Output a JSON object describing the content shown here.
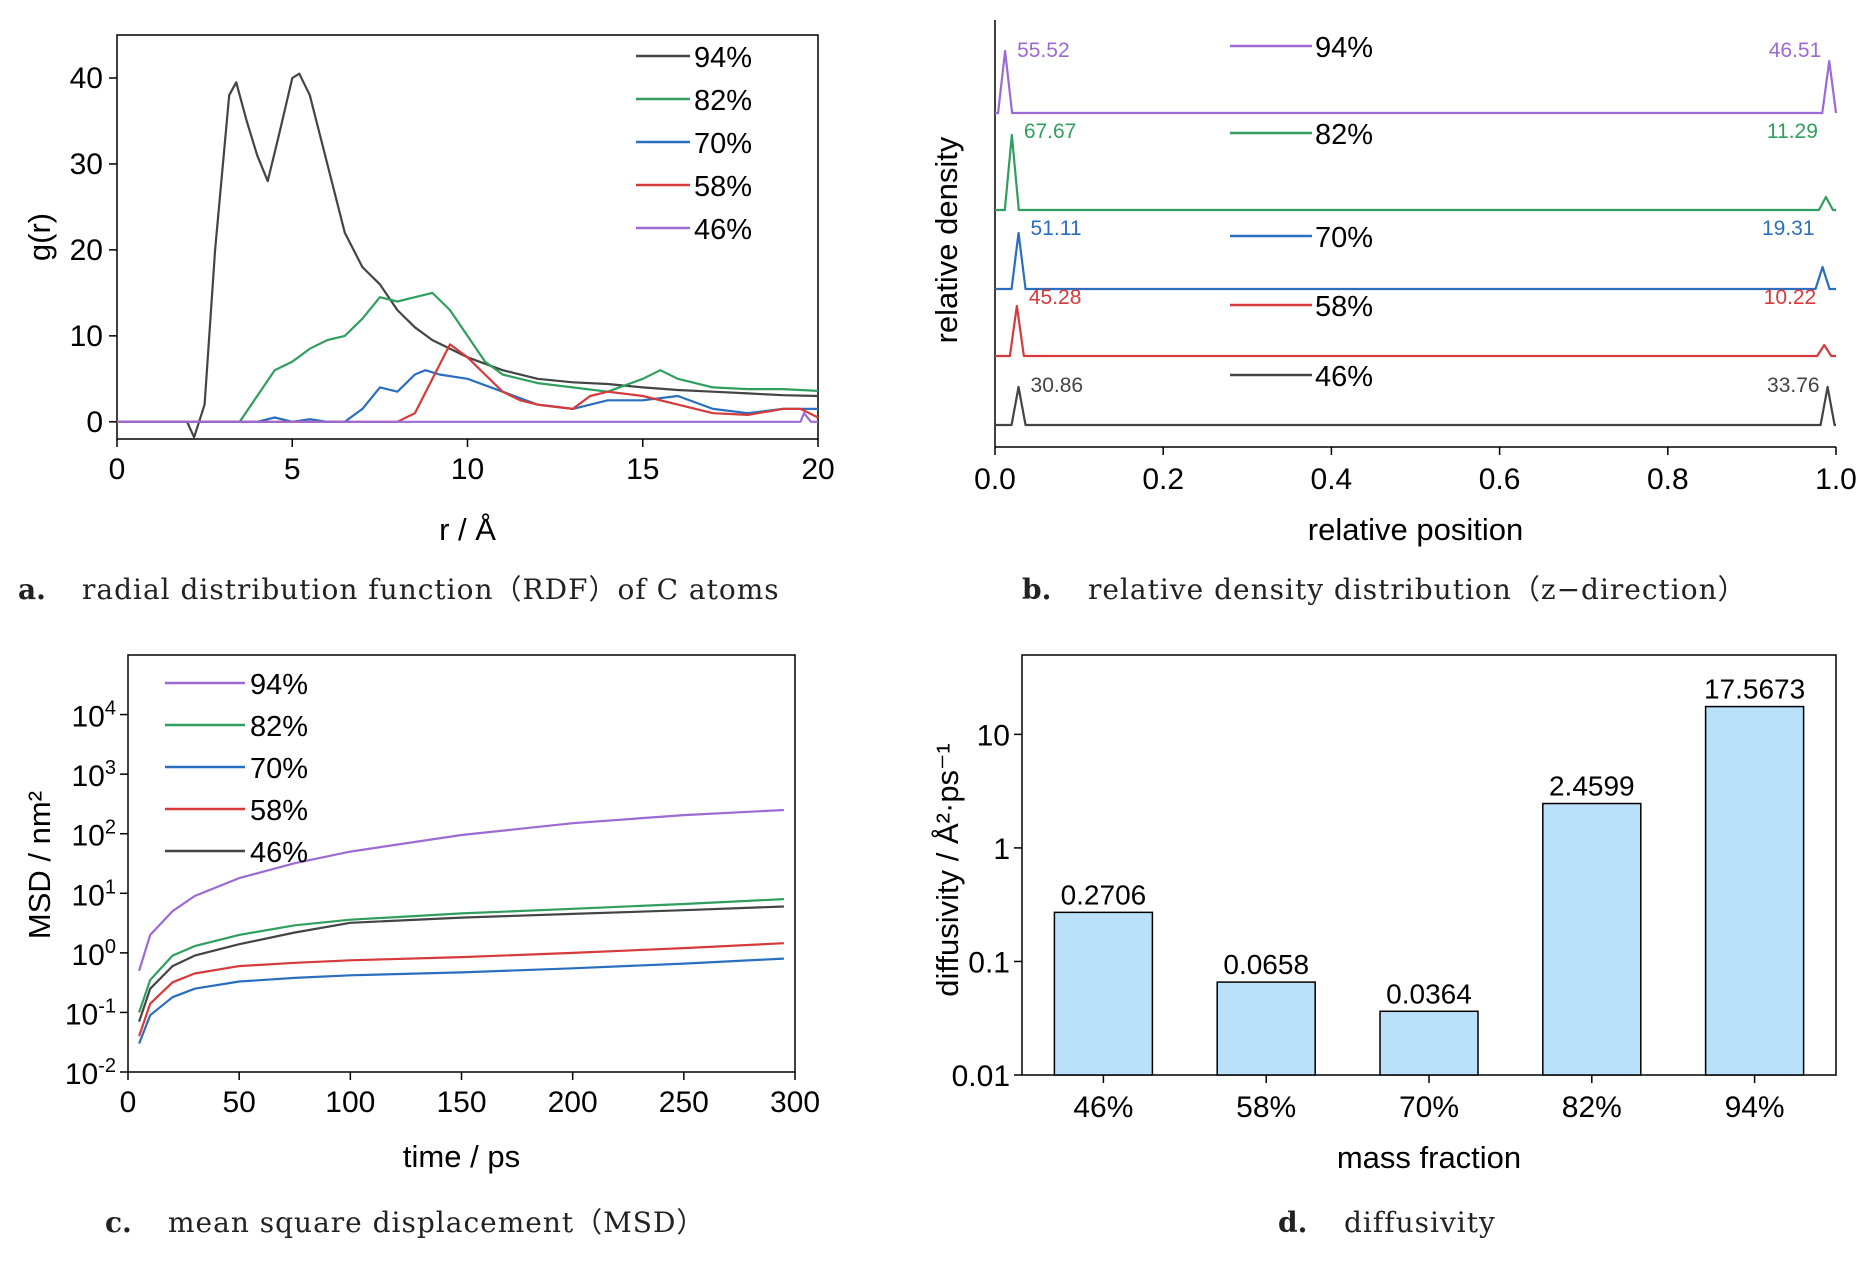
{
  "colors": {
    "p94": "#9c6ad3",
    "p82": "#2f9e5e",
    "p70": "#2a6ebf",
    "p58": "#d63a3a",
    "p46": "#444444",
    "bar": "#b9e2fa",
    "axis": "#000000"
  },
  "captions": {
    "a": {
      "letter": "a.",
      "text": "radial distribution function（RDF）of C atoms"
    },
    "b": {
      "letter": "b.",
      "text": "relative density distribution（z−direction）"
    },
    "c": {
      "letter": "c.",
      "text": "mean square displacement（MSD）"
    },
    "d": {
      "letter": "d.",
      "text": "diffusivity"
    }
  },
  "chart_data": [
    {
      "id": "a",
      "type": "line",
      "xlabel": "r / Å",
      "ylabel": "g(r)",
      "xlim": [
        0,
        20
      ],
      "ylim": [
        -2,
        45
      ],
      "xticks": [
        0,
        5,
        10,
        15,
        20
      ],
      "yticks": [
        0,
        10,
        20,
        30,
        40
      ],
      "legend": "top-right",
      "series": [
        {
          "name": "94%",
          "color": "#444444",
          "points": [
            [
              0,
              0
            ],
            [
              2.0,
              0
            ],
            [
              2.2,
              -1.8
            ],
            [
              2.5,
              2
            ],
            [
              2.8,
              20
            ],
            [
              3.2,
              38
            ],
            [
              3.4,
              39.5
            ],
            [
              3.7,
              35
            ],
            [
              4.0,
              31
            ],
            [
              4.3,
              28
            ],
            [
              4.6,
              33
            ],
            [
              5.0,
              40
            ],
            [
              5.2,
              40.5
            ],
            [
              5.5,
              38
            ],
            [
              6.0,
              30
            ],
            [
              6.5,
              22
            ],
            [
              7.0,
              18
            ],
            [
              7.5,
              16
            ],
            [
              8.0,
              13
            ],
            [
              8.5,
              11
            ],
            [
              9.0,
              9.5
            ],
            [
              10,
              7.5
            ],
            [
              11,
              6
            ],
            [
              12,
              5
            ],
            [
              13,
              4.6
            ],
            [
              14,
              4.4
            ],
            [
              15,
              4
            ],
            [
              16,
              3.7
            ],
            [
              17,
              3.5
            ],
            [
              18,
              3.3
            ],
            [
              19,
              3.1
            ],
            [
              20,
              3
            ]
          ]
        },
        {
          "name": "82%",
          "color": "#2f9e5e",
          "points": [
            [
              0,
              0
            ],
            [
              3.5,
              0
            ],
            [
              4,
              3
            ],
            [
              4.5,
              6
            ],
            [
              5,
              7
            ],
            [
              5.5,
              8.5
            ],
            [
              6,
              9.5
            ],
            [
              6.5,
              10
            ],
            [
              7,
              12
            ],
            [
              7.5,
              14.5
            ],
            [
              8,
              14
            ],
            [
              8.5,
              14.5
            ],
            [
              9,
              15
            ],
            [
              9.5,
              13
            ],
            [
              10,
              10
            ],
            [
              10.5,
              7
            ],
            [
              11,
              5.5
            ],
            [
              12,
              4.5
            ],
            [
              13,
              4
            ],
            [
              14,
              3.5
            ],
            [
              15,
              5
            ],
            [
              15.5,
              6
            ],
            [
              16,
              5
            ],
            [
              17,
              4
            ],
            [
              18,
              3.8
            ],
            [
              19,
              3.8
            ],
            [
              20,
              3.6
            ]
          ]
        },
        {
          "name": "70%",
          "color": "#2a6ebf",
          "points": [
            [
              0,
              0
            ],
            [
              4,
              0
            ],
            [
              4.5,
              0.5
            ],
            [
              5,
              0
            ],
            [
              5.5,
              0.3
            ],
            [
              6,
              0
            ],
            [
              6.5,
              0
            ],
            [
              7,
              1.5
            ],
            [
              7.5,
              4
            ],
            [
              8,
              3.5
            ],
            [
              8.5,
              5.5
            ],
            [
              8.8,
              6
            ],
            [
              9.2,
              5.5
            ],
            [
              10,
              5
            ],
            [
              11,
              3.5
            ],
            [
              12,
              2
            ],
            [
              13,
              1.5
            ],
            [
              14,
              2.5
            ],
            [
              15,
              2.5
            ],
            [
              16,
              3
            ],
            [
              17,
              1.5
            ],
            [
              18,
              1
            ],
            [
              19,
              1.5
            ],
            [
              20,
              1.5
            ]
          ]
        },
        {
          "name": "58%",
          "color": "#d63a3a",
          "points": [
            [
              0,
              0
            ],
            [
              8,
              0
            ],
            [
              8.5,
              1
            ],
            [
              9,
              5
            ],
            [
              9.5,
              9
            ],
            [
              10,
              7.5
            ],
            [
              10.5,
              5.5
            ],
            [
              11,
              3.5
            ],
            [
              11.5,
              2.5
            ],
            [
              12,
              2
            ],
            [
              13,
              1.5
            ],
            [
              13.5,
              3
            ],
            [
              14,
              3.5
            ],
            [
              15,
              3
            ],
            [
              16,
              2
            ],
            [
              17,
              1
            ],
            [
              18,
              0.8
            ],
            [
              19,
              1.5
            ],
            [
              19.5,
              1.5
            ],
            [
              20,
              0.5
            ]
          ]
        },
        {
          "name": "46%",
          "color": "#9c6ad3",
          "points": [
            [
              0,
              0
            ],
            [
              19.5,
              0
            ],
            [
              19.6,
              1
            ],
            [
              19.8,
              0
            ],
            [
              20,
              0
            ]
          ]
        }
      ]
    },
    {
      "id": "b",
      "type": "line",
      "xlabel": "relative position",
      "ylabel": "relative density",
      "xlim": [
        0,
        1
      ],
      "xticks": [
        0.0,
        0.2,
        0.4,
        0.6,
        0.8,
        1.0
      ],
      "legend": "inline",
      "series": [
        {
          "name": "94%",
          "color": "#9c6ad3",
          "left_peak": "55.52",
          "right_peak": "46.51",
          "left_pos": 0.012,
          "right_pos": 0.992
        },
        {
          "name": "82%",
          "color": "#2f9e5e",
          "left_peak": "67.67",
          "right_peak": "11.29",
          "left_pos": 0.02,
          "right_pos": 0.988
        },
        {
          "name": "70%",
          "color": "#2a6ebf",
          "left_peak": "51.11",
          "right_peak": "19.31",
          "left_pos": 0.028,
          "right_pos": 0.984
        },
        {
          "name": "58%",
          "color": "#d63a3a",
          "left_peak": "45.28",
          "right_peak": "10.22",
          "left_pos": 0.026,
          "right_pos": 0.986
        },
        {
          "name": "46%",
          "color": "#444444",
          "left_peak": "30.86",
          "right_peak": "33.76",
          "left_pos": 0.028,
          "right_pos": 0.99
        }
      ]
    },
    {
      "id": "c",
      "type": "line",
      "xlabel": "time / ps",
      "ylabel": "MSD / nm²",
      "xlim": [
        0,
        300
      ],
      "ylim": [
        0.01,
        100000
      ],
      "yscale": "log",
      "xticks": [
        0,
        50,
        100,
        150,
        200,
        250,
        300
      ],
      "yticks": [
        0.01,
        0.1,
        1,
        10,
        100,
        1000,
        10000
      ],
      "yticklabels": [
        {
          "b": "10",
          "e": "-2"
        },
        {
          "b": "10",
          "e": "-1"
        },
        {
          "b": "10",
          "e": "0"
        },
        {
          "b": "10",
          "e": "1"
        },
        {
          "b": "10",
          "e": "2"
        },
        {
          "b": "10",
          "e": "3"
        },
        {
          "b": "10",
          "e": "4"
        }
      ],
      "legend": "top-left",
      "series": [
        {
          "name": "94%",
          "color": "#9c6ad3",
          "points": [
            [
              5,
              0.5
            ],
            [
              10,
              2
            ],
            [
              20,
              5
            ],
            [
              30,
              9
            ],
            [
              50,
              18
            ],
            [
              75,
              32
            ],
            [
              100,
              50
            ],
            [
              150,
              95
            ],
            [
              200,
              150
            ],
            [
              250,
              205
            ],
            [
              295,
              250
            ]
          ]
        },
        {
          "name": "82%",
          "color": "#2f9e5e",
          "points": [
            [
              5,
              0.1
            ],
            [
              10,
              0.35
            ],
            [
              20,
              0.9
            ],
            [
              30,
              1.3
            ],
            [
              50,
              2
            ],
            [
              75,
              2.9
            ],
            [
              100,
              3.6
            ],
            [
              150,
              4.6
            ],
            [
              200,
              5.5
            ],
            [
              250,
              6.6
            ],
            [
              295,
              8
            ]
          ]
        },
        {
          "name": "70%",
          "color": "#2a6ebf",
          "points": [
            [
              5,
              0.03
            ],
            [
              10,
              0.09
            ],
            [
              20,
              0.18
            ],
            [
              30,
              0.25
            ],
            [
              50,
              0.33
            ],
            [
              75,
              0.38
            ],
            [
              100,
              0.42
            ],
            [
              150,
              0.47
            ],
            [
              200,
              0.55
            ],
            [
              250,
              0.66
            ],
            [
              295,
              0.8
            ]
          ]
        },
        {
          "name": "58%",
          "color": "#d63a3a",
          "points": [
            [
              5,
              0.04
            ],
            [
              10,
              0.14
            ],
            [
              20,
              0.32
            ],
            [
              30,
              0.45
            ],
            [
              50,
              0.6
            ],
            [
              75,
              0.68
            ],
            [
              100,
              0.75
            ],
            [
              150,
              0.85
            ],
            [
              200,
              1.0
            ],
            [
              250,
              1.2
            ],
            [
              295,
              1.45
            ]
          ]
        },
        {
          "name": "46%",
          "color": "#444444",
          "points": [
            [
              5,
              0.07
            ],
            [
              10,
              0.25
            ],
            [
              20,
              0.6
            ],
            [
              30,
              0.9
            ],
            [
              50,
              1.4
            ],
            [
              75,
              2.2
            ],
            [
              100,
              3.2
            ],
            [
              150,
              3.9
            ],
            [
              200,
              4.5
            ],
            [
              250,
              5.2
            ],
            [
              295,
              6
            ]
          ]
        }
      ]
    },
    {
      "id": "d",
      "type": "bar",
      "xlabel": "mass fraction",
      "ylabel": "diffusivity / Å²·ps⁻¹",
      "yscale": "log",
      "ylim": [
        0.01,
        50
      ],
      "yticks": [
        0.01,
        0.1,
        1,
        10
      ],
      "yticklabels": [
        "0.01",
        "0.1",
        "1",
        "10"
      ],
      "categories": [
        "46%",
        "58%",
        "70%",
        "82%",
        "94%"
      ],
      "values": [
        0.2706,
        0.0658,
        0.0364,
        2.4599,
        17.5673
      ],
      "labels": [
        "0.2706",
        "0.0658",
        "0.0364",
        "2.4599",
        "17.5673"
      ]
    }
  ]
}
